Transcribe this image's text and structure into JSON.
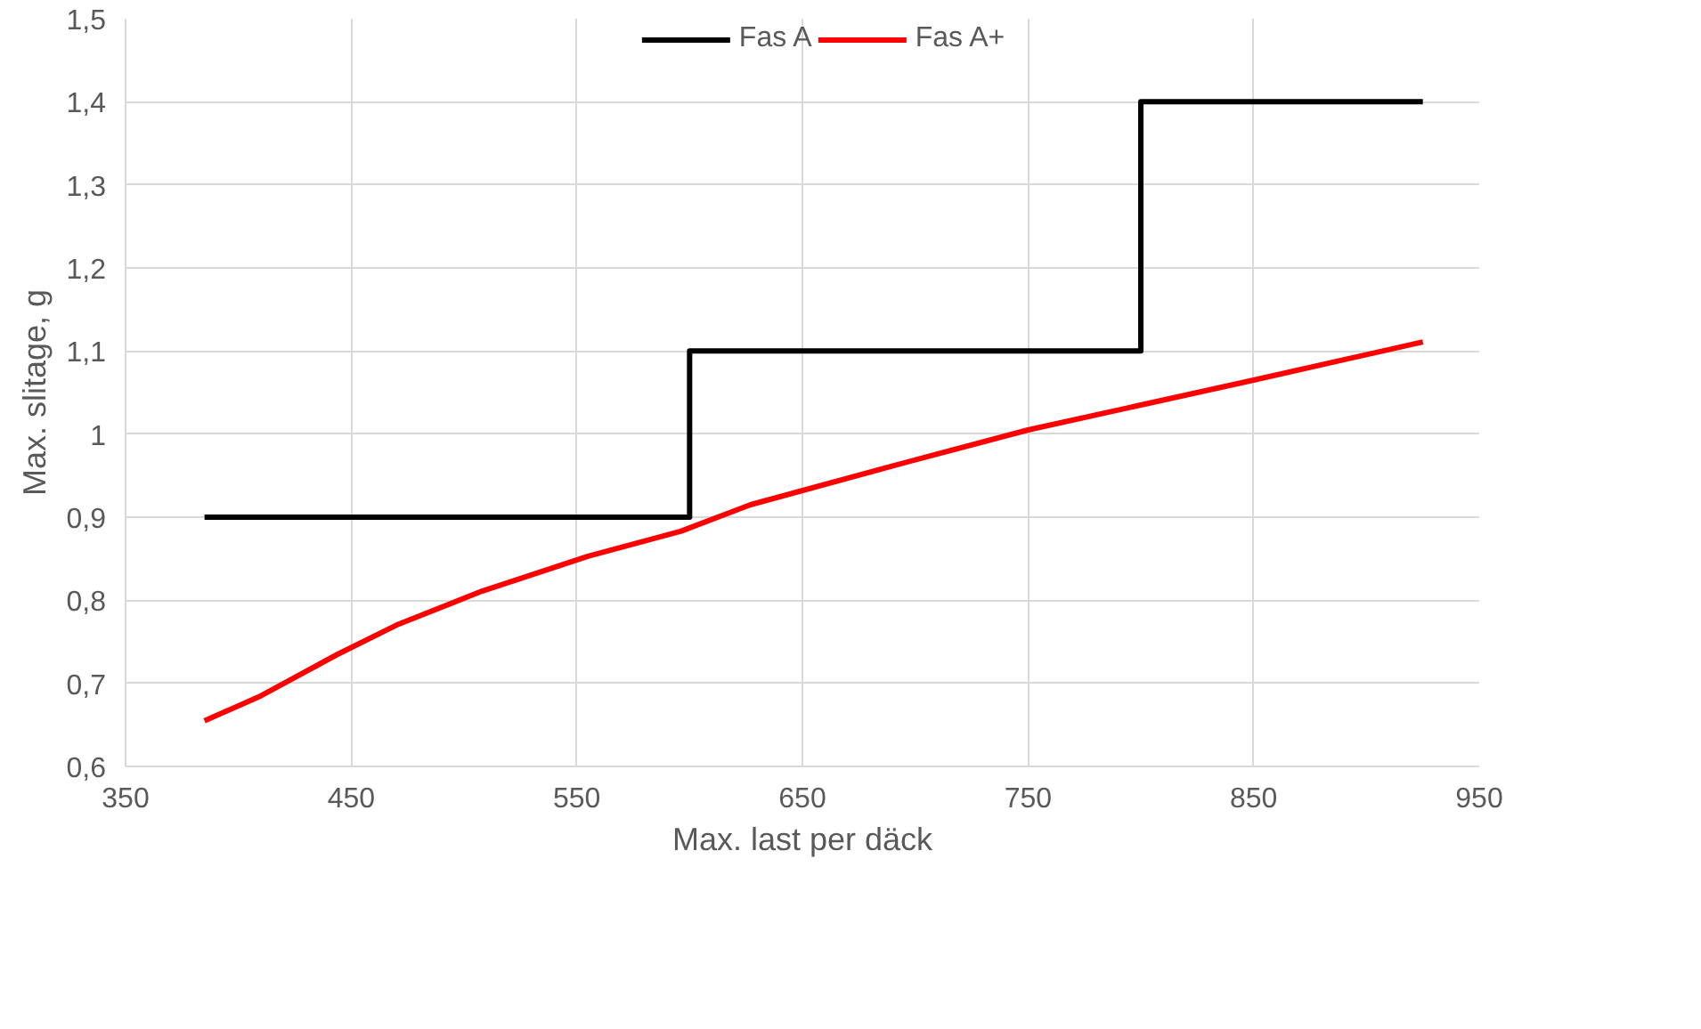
{
  "chart_data": {
    "type": "line",
    "xlabel": "Max. last per däck",
    "ylabel": "Max. slitage, g",
    "xlim": [
      350,
      950
    ],
    "xticks": [
      350,
      450,
      550,
      650,
      750,
      850,
      950
    ],
    "ylim": [
      0.6,
      1.5
    ],
    "yticks": [
      {
        "value": 0.6,
        "label": "0,6"
      },
      {
        "value": 0.7,
        "label": "0,7"
      },
      {
        "value": 0.8,
        "label": "0,8"
      },
      {
        "value": 0.9,
        "label": "0,9"
      },
      {
        "value": 1,
        "label": "1"
      },
      {
        "value": 1.1,
        "label": "1,1"
      },
      {
        "value": 1.2,
        "label": "1,2"
      },
      {
        "value": 1.3,
        "label": "1,3"
      },
      {
        "value": 1.4,
        "label": "1,4"
      },
      {
        "value": 1.5,
        "label": "1,5"
      }
    ],
    "grid": true,
    "legend": "top",
    "line_style": "solid",
    "marker": "none",
    "series": [
      {
        "name": "Fas A",
        "type": "step",
        "color": "#000000",
        "x": [
          385,
          600,
          800,
          925
        ],
        "values": [
          0.9,
          1.1,
          1.4,
          1.4
        ]
      },
      {
        "name": "Fas A+",
        "type": "line",
        "color": "#ff0000",
        "x": [
          385,
          410,
          444,
          470,
          508,
          555,
          596,
          627,
          689,
          750,
          800,
          850,
          925
        ],
        "values": [
          0.655,
          0.685,
          0.735,
          0.77,
          0.811,
          0.853,
          0.883,
          0.915,
          0.961,
          1.005,
          1.035,
          1.065,
          1.111
        ]
      }
    ]
  }
}
